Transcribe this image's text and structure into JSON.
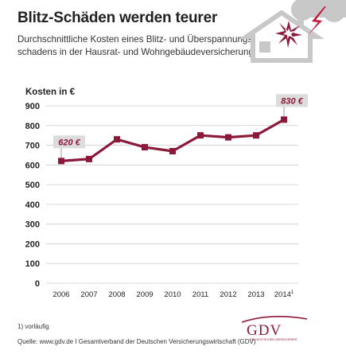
{
  "header": {
    "title": "Blitz-Schäden werden teurer",
    "subtitle_lines": [
      "Durchschnittliche Kosten eines Blitz- und Überspannungs-",
      "schadens in der Hausrat- und Wohngebäudeversicherung"
    ]
  },
  "chart_data": {
    "type": "line",
    "ylabel": "Kosten in €",
    "x": [
      "2006",
      "2007",
      "2008",
      "2009",
      "2010",
      "2011",
      "2012",
      "2013",
      "2014"
    ],
    "x_superscripts": [
      "",
      "",
      "",
      "",
      "",
      "",
      "",
      "",
      "1"
    ],
    "series": [
      {
        "values": [
          620,
          630,
          730,
          690,
          670,
          750,
          740,
          750,
          830
        ],
        "color": "#8b1a3a"
      }
    ],
    "ylim": [
      0,
      900
    ],
    "yticks": [
      0,
      100,
      200,
      300,
      400,
      500,
      600,
      700,
      800,
      900
    ],
    "grid": true,
    "annotations": [
      {
        "index": 0,
        "text": "620 €"
      },
      {
        "index": 8,
        "text": "830 €"
      }
    ]
  },
  "footer": {
    "footnote": "1) vorläufig",
    "source": "Quelle: www.gdv.de I Gesamtverband der Deutschen Versicherungswirtschaft (GDV)"
  },
  "logo": {
    "wordmark": "GDV",
    "tagline": "DIE DEUTSCHEN VERSICHERER",
    "color": "#8b1a3a"
  },
  "icons": [
    "house-lightning-icon"
  ]
}
